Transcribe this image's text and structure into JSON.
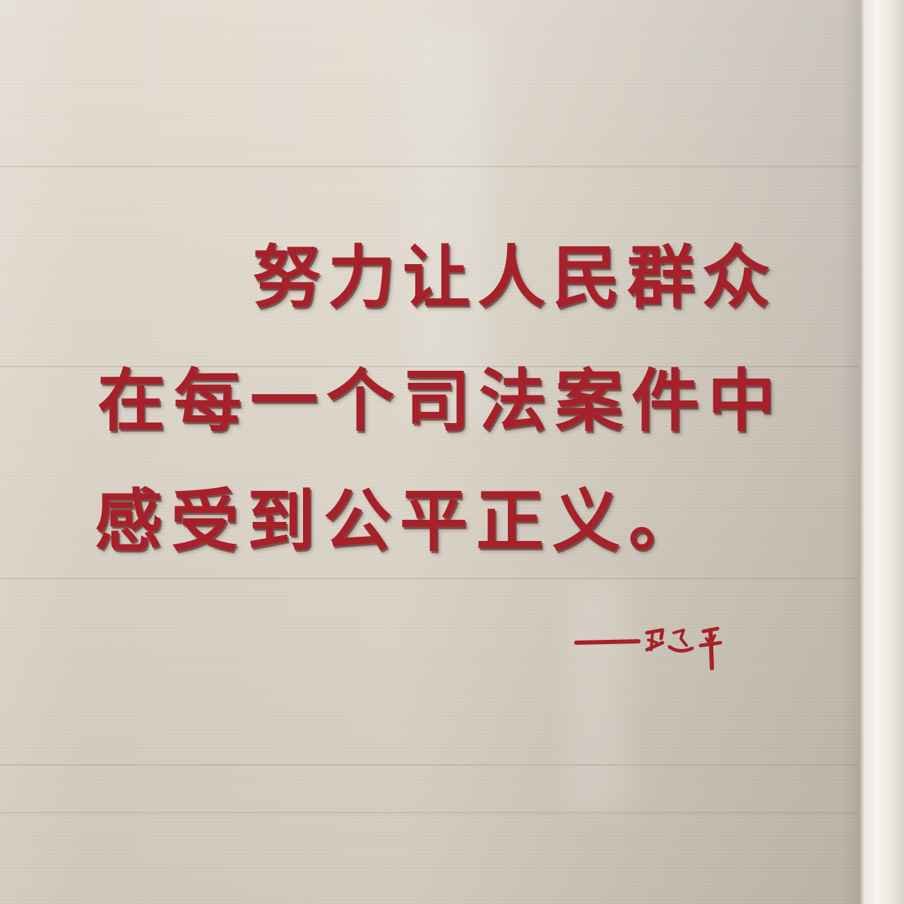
{
  "quote": {
    "line1": "努力让人民群众",
    "line2": "在每一个司法案件中",
    "line3": "感受到公平正义。"
  },
  "signature": {
    "text": "——习近平"
  },
  "colors": {
    "lettering": "#a6212a",
    "wall": "#d9d2c6"
  }
}
